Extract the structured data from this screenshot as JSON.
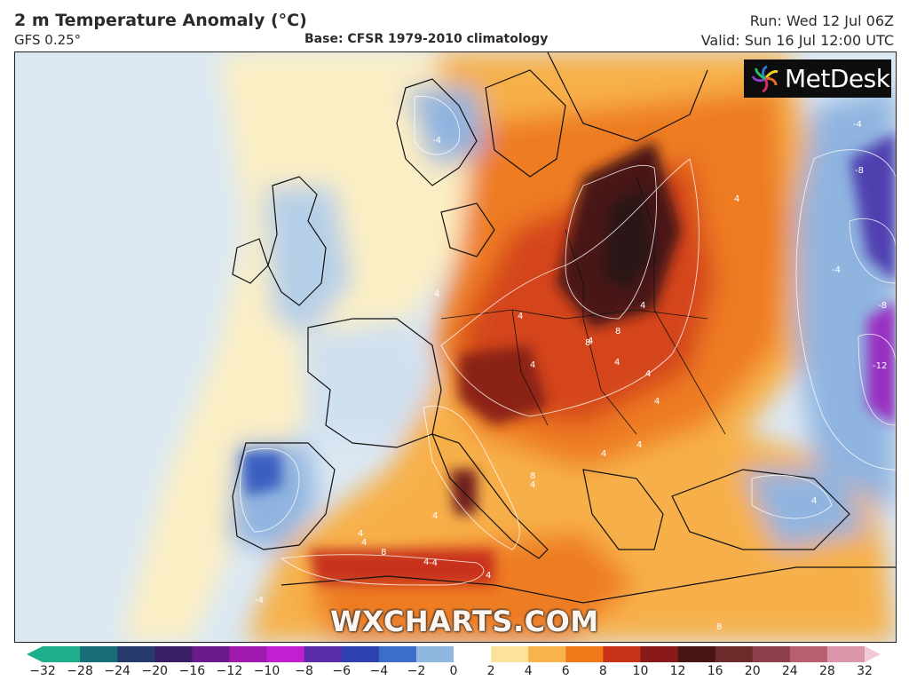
{
  "header": {
    "title": "2 m Temperature Anomaly (°C)",
    "model": "GFS 0.25°",
    "base": "Base: CFSR 1979-2010 climatology",
    "run": "Run: Wed 12 Jul 06Z",
    "valid": "Valid: Sun 16 Jul 12:00 UTC"
  },
  "logo": {
    "text": "MetDesk",
    "icon": "metdesk-flower-logo"
  },
  "watermark": "WXCHARTS.COM",
  "colorbar": {
    "ticks": [
      "−32",
      "−28",
      "−24",
      "−20",
      "−16",
      "−12",
      "−10",
      "−8",
      "−6",
      "−4",
      "−2",
      "0",
      "2",
      "4",
      "6",
      "8",
      "10",
      "12",
      "16",
      "20",
      "24",
      "28",
      "32"
    ],
    "colors": [
      "#1fae8a",
      "#1a6e7a",
      "#243b6b",
      "#3b1f66",
      "#6a1a8a",
      "#a01ab0",
      "#c21fd0",
      "#5a2ca8",
      "#2e3fb0",
      "#3a6ec8",
      "#8fb8e0",
      "#ffffff",
      "#fde39a",
      "#f8b44a",
      "#f07a1a",
      "#c8321a",
      "#8a1a1a",
      "#4a1414",
      "#6e2a2a",
      "#8a3f4a",
      "#b86070",
      "#dc96aa",
      "#f2c8d6"
    ]
  },
  "contour_labels": [
    "4",
    "4",
    "4",
    "4",
    "8",
    "8",
    "4",
    "4",
    "4",
    "4",
    "4",
    "8",
    "4",
    "4",
    "4",
    "-4",
    "-8",
    "-8",
    "-12",
    "-4",
    "-4",
    "4",
    "4",
    "8",
    "4",
    "-4",
    "4",
    "4",
    "4",
    "8",
    "-4"
  ],
  "colors": {
    "cold": "#3a6ec8",
    "warm": "#f07a1a",
    "hot": "#4a1414",
    "pale_cold": "#dfeaf4"
  }
}
